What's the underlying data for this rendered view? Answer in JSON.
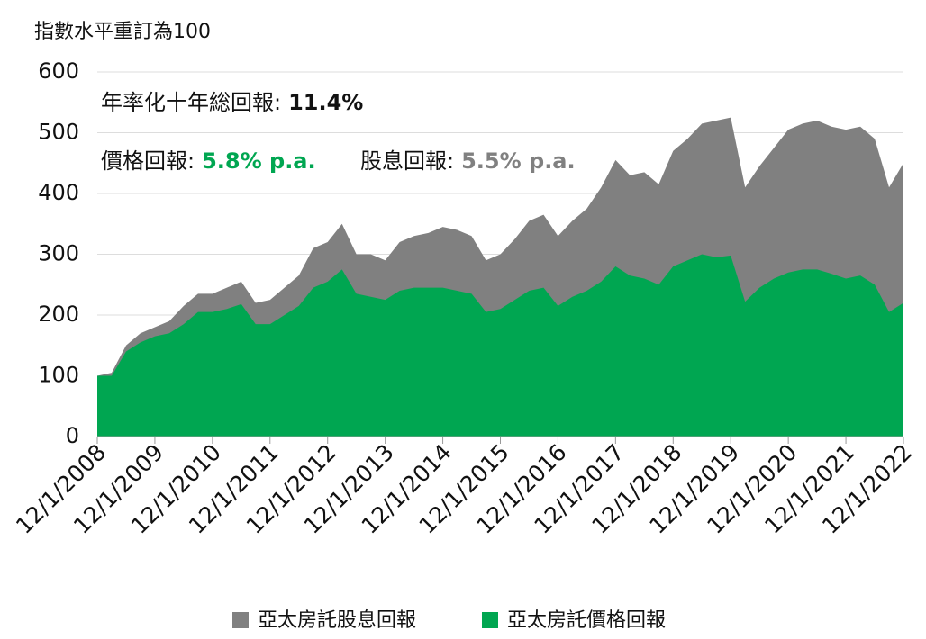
{
  "chart_data": {
    "type": "area",
    "y_label": "指數水平重訂為100",
    "annotations": [
      {
        "label": "年率化十年総回報:",
        "value": "11.4%",
        "color": "#111111"
      },
      {
        "label": "價格回報:",
        "value": "5.8% p.a.",
        "color": "#00a651"
      },
      {
        "label": "股息回報:",
        "value": "5.5% p.a.",
        "color": "#808080"
      }
    ],
    "x": [
      "12/1/2008",
      "3/1/2009",
      "6/1/2009",
      "9/1/2009",
      "12/1/2009",
      "3/1/2010",
      "6/1/2010",
      "9/1/2010",
      "12/1/2010",
      "3/1/2011",
      "6/1/2011",
      "9/1/2011",
      "12/1/2011",
      "3/1/2012",
      "6/1/2012",
      "9/1/2012",
      "12/1/2012",
      "3/1/2013",
      "6/1/2013",
      "9/1/2013",
      "12/1/2013",
      "3/1/2014",
      "6/1/2014",
      "9/1/2014",
      "12/1/2014",
      "3/1/2015",
      "6/1/2015",
      "9/1/2015",
      "12/1/2015",
      "3/1/2016",
      "6/1/2016",
      "9/1/2016",
      "12/1/2016",
      "3/1/2017",
      "6/1/2017",
      "9/1/2017",
      "12/1/2017",
      "3/1/2018",
      "6/1/2018",
      "9/1/2018",
      "12/1/2018",
      "3/1/2019",
      "6/1/2019",
      "9/1/2019",
      "12/1/2019",
      "3/1/2020",
      "6/1/2020",
      "9/1/2020",
      "12/1/2020",
      "3/1/2021",
      "6/1/2021",
      "9/1/2021",
      "12/1/2021",
      "3/1/2022",
      "6/1/2022",
      "9/1/2022",
      "12/1/2022"
    ],
    "series": [
      {
        "name": "亞太房託股息回報",
        "color": "#808080",
        "values": [
          100,
          105,
          150,
          170,
          180,
          190,
          215,
          235,
          235,
          245,
          255,
          220,
          225,
          245,
          265,
          310,
          320,
          350,
          300,
          300,
          290,
          320,
          330,
          335,
          345,
          340,
          330,
          290,
          300,
          325,
          355,
          365,
          330,
          355,
          375,
          410,
          455,
          430,
          435,
          415,
          470,
          490,
          515,
          520,
          525,
          410,
          445,
          475,
          505,
          515,
          520,
          510,
          505,
          510,
          490,
          410,
          450
        ]
      },
      {
        "name": "亞太房託價格回報",
        "color": "#00a651",
        "values": [
          100,
          100,
          140,
          155,
          165,
          170,
          185,
          205,
          205,
          210,
          218,
          185,
          185,
          200,
          215,
          245,
          255,
          275,
          235,
          230,
          225,
          240,
          245,
          245,
          245,
          240,
          235,
          205,
          210,
          225,
          240,
          245,
          215,
          230,
          240,
          255,
          280,
          265,
          260,
          250,
          280,
          290,
          300,
          295,
          298,
          222,
          245,
          260,
          270,
          275,
          275,
          268,
          260,
          265,
          250,
          205,
          220
        ]
      }
    ],
    "xticks": [
      "12/1/2008",
      "12/1/2009",
      "12/1/2010",
      "12/1/2011",
      "12/1/2012",
      "12/1/2013",
      "12/1/2014",
      "12/1/2015",
      "12/1/2016",
      "12/1/2017",
      "12/1/2018",
      "12/1/2019",
      "12/1/2020",
      "12/1/2021",
      "12/1/2022"
    ],
    "ylim": [
      0,
      600
    ],
    "yticks": [
      0,
      100,
      200,
      300,
      400,
      500,
      600
    ],
    "grid": true,
    "legend": "bottom"
  }
}
